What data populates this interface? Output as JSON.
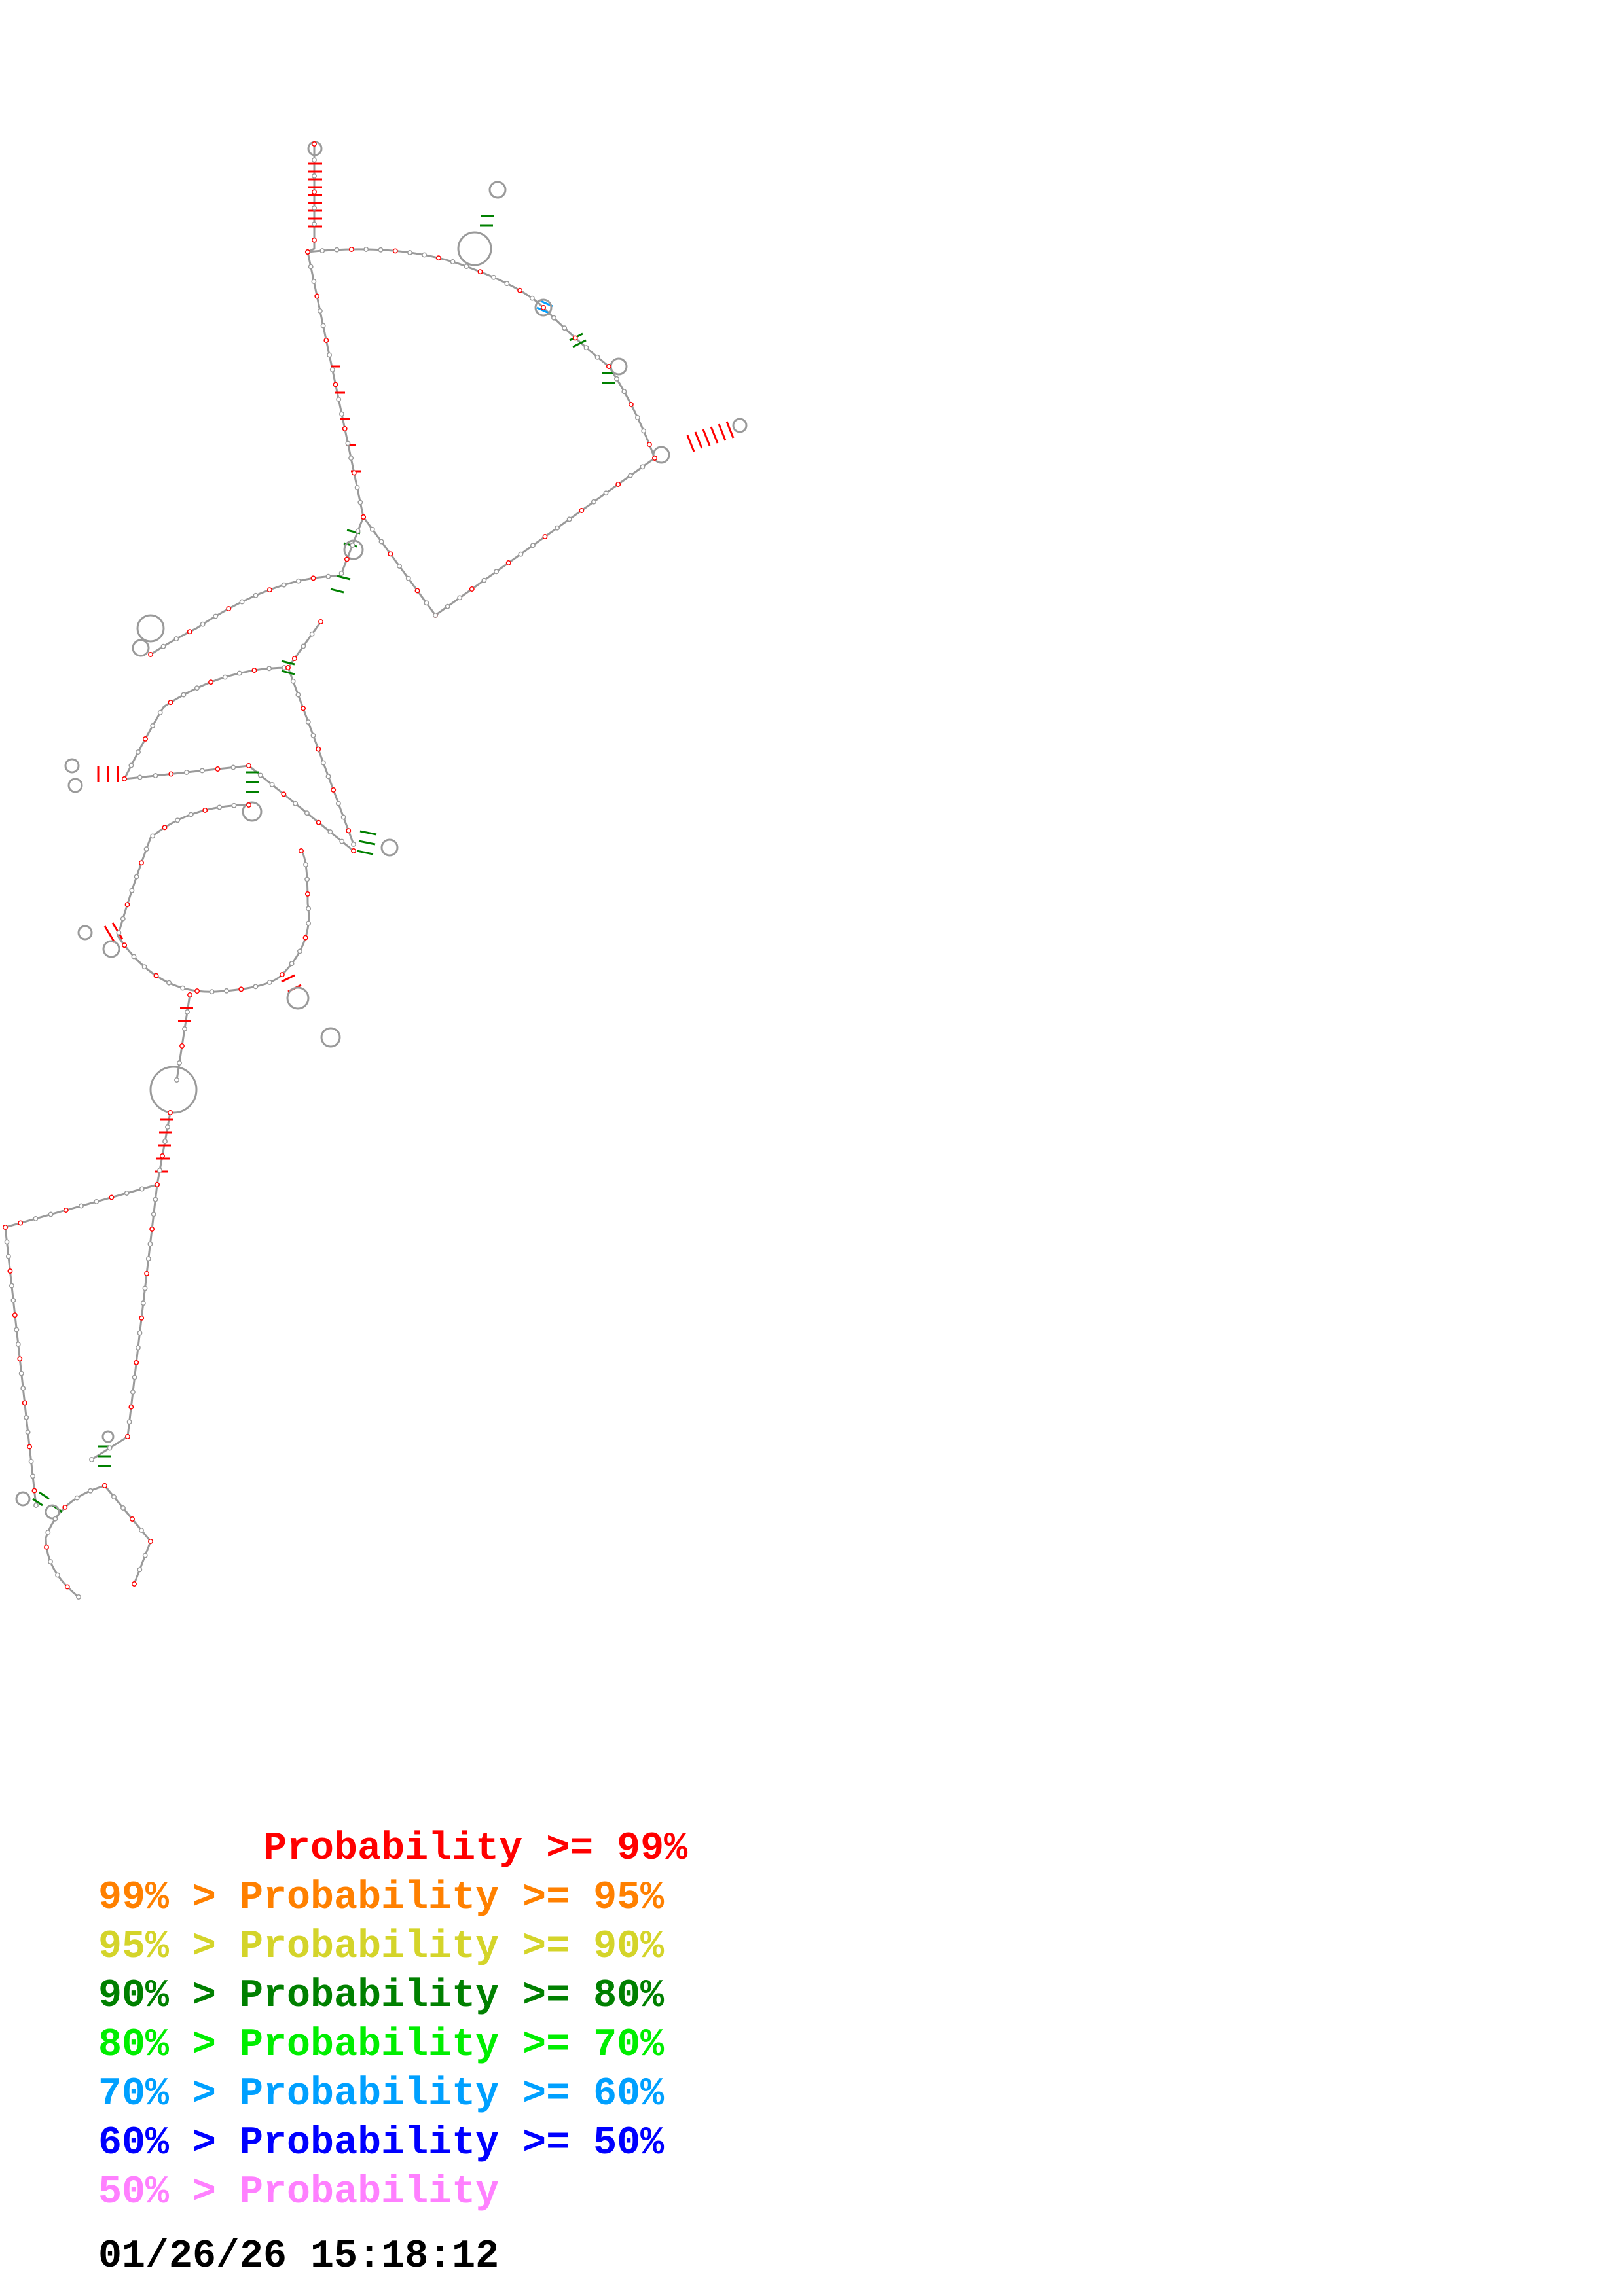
{
  "legend": [
    {
      "text": "       Probability >= 99%",
      "color": "#ff0000"
    },
    {
      "text": "99% > Probability >= 95%",
      "color": "#ff8000"
    },
    {
      "text": "95% > Probability >= 90%",
      "color": "#d4d42a"
    },
    {
      "text": "90% > Probability >= 80%",
      "color": "#008000"
    },
    {
      "text": "80% > Probability >= 70%",
      "color": "#00ee00"
    },
    {
      "text": "70% > Probability >= 60%",
      "color": "#00a0ff"
    },
    {
      "text": "60% > Probability >= 50%",
      "color": "#0000ff"
    },
    {
      "text": "50% > Probability",
      "color": "#ff80ff"
    }
  ],
  "timestamp": "01/26/26 15:18:12",
  "colors": {
    "backbone": "#9a9a9a",
    "nucleotide_fill": "#ffffff",
    "pair_high": "#ff0000",
    "pair_mid": "#008000",
    "pair_low": "#00a0ff"
  }
}
